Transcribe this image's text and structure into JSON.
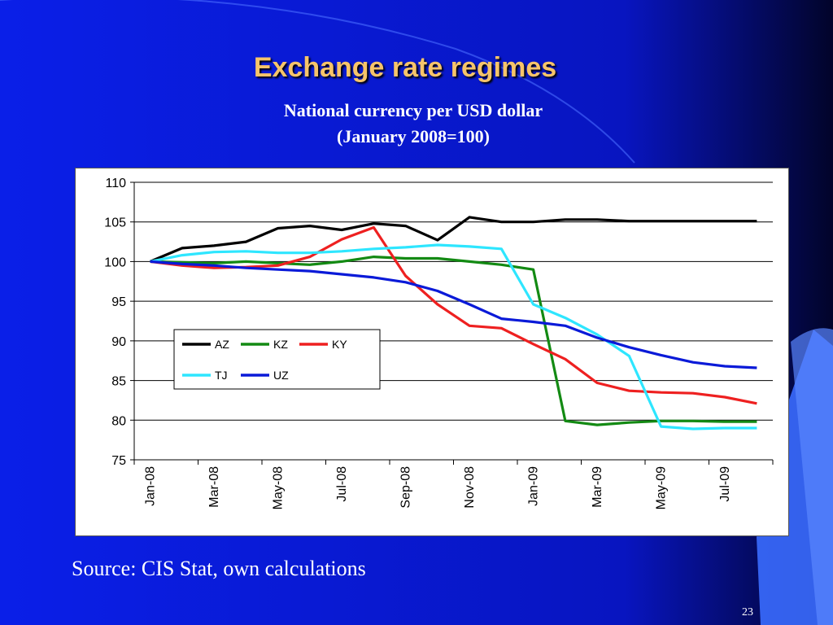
{
  "slide": {
    "title": "Exchange rate regimes",
    "subtitle_line1": "National currency per USD dollar",
    "subtitle_line2": "(January 2008=100)",
    "source": "Source: CIS Stat, own calculations",
    "page_number": "23"
  },
  "chart_data": {
    "type": "line",
    "title": "",
    "xlabel": "",
    "ylabel": "",
    "ylim": [
      75,
      110
    ],
    "yticks": [
      75,
      80,
      85,
      90,
      95,
      100,
      105,
      110
    ],
    "grid": "horizontal",
    "legend_position": "center-left",
    "x": [
      "Jan-08",
      "Feb-08",
      "Mar-08",
      "Apr-08",
      "May-08",
      "Jun-08",
      "Jul-08",
      "Aug-08",
      "Sep-08",
      "Oct-08",
      "Nov-08",
      "Dec-08",
      "Jan-09",
      "Feb-09",
      "Mar-09",
      "Apr-09",
      "May-09",
      "Jun-09",
      "Jul-09",
      "Aug-09"
    ],
    "x_tick_labels": [
      "Jan-08",
      "Mar-08",
      "May-08",
      "Jul-08",
      "Sep-08",
      "Nov-08",
      "Jan-09",
      "Mar-09",
      "May-09",
      "Jul-09"
    ],
    "series": [
      {
        "name": "AZ",
        "color": "#000000",
        "values": [
          100,
          101.7,
          102.0,
          102.5,
          104.2,
          104.5,
          104.0,
          104.8,
          104.5,
          102.7,
          105.6,
          105.0,
          105.0,
          105.3,
          105.3,
          105.1,
          105.1,
          105.1,
          105.1,
          105.1
        ]
      },
      {
        "name": "KZ",
        "color": "#138a13",
        "values": [
          100,
          99.9,
          99.8,
          100.0,
          99.8,
          99.6,
          100.0,
          100.6,
          100.4,
          100.4,
          100.0,
          99.6,
          99.0,
          79.9,
          79.4,
          79.7,
          79.9,
          79.9,
          79.8,
          79.8
        ]
      },
      {
        "name": "KY",
        "color": "#ee2020",
        "values": [
          100,
          99.5,
          99.2,
          99.3,
          99.5,
          100.6,
          102.8,
          104.3,
          98.2,
          94.6,
          91.9,
          91.6,
          89.6,
          87.7,
          84.7,
          83.7,
          83.5,
          83.4,
          82.9,
          82.1
        ]
      },
      {
        "name": "TJ",
        "color": "#2ee6ff",
        "values": [
          100,
          100.8,
          101.2,
          101.3,
          101.1,
          101.1,
          101.3,
          101.6,
          101.8,
          102.1,
          101.9,
          101.6,
          94.6,
          92.9,
          90.8,
          88.1,
          79.2,
          78.9,
          79.0,
          79.0
        ]
      },
      {
        "name": "UZ",
        "color": "#0a1ad8",
        "values": [
          100,
          99.7,
          99.5,
          99.2,
          99.0,
          98.8,
          98.4,
          98.0,
          97.4,
          96.3,
          94.6,
          92.8,
          92.4,
          91.9,
          90.4,
          89.2,
          88.2,
          87.3,
          86.8,
          86.6
        ]
      }
    ]
  }
}
